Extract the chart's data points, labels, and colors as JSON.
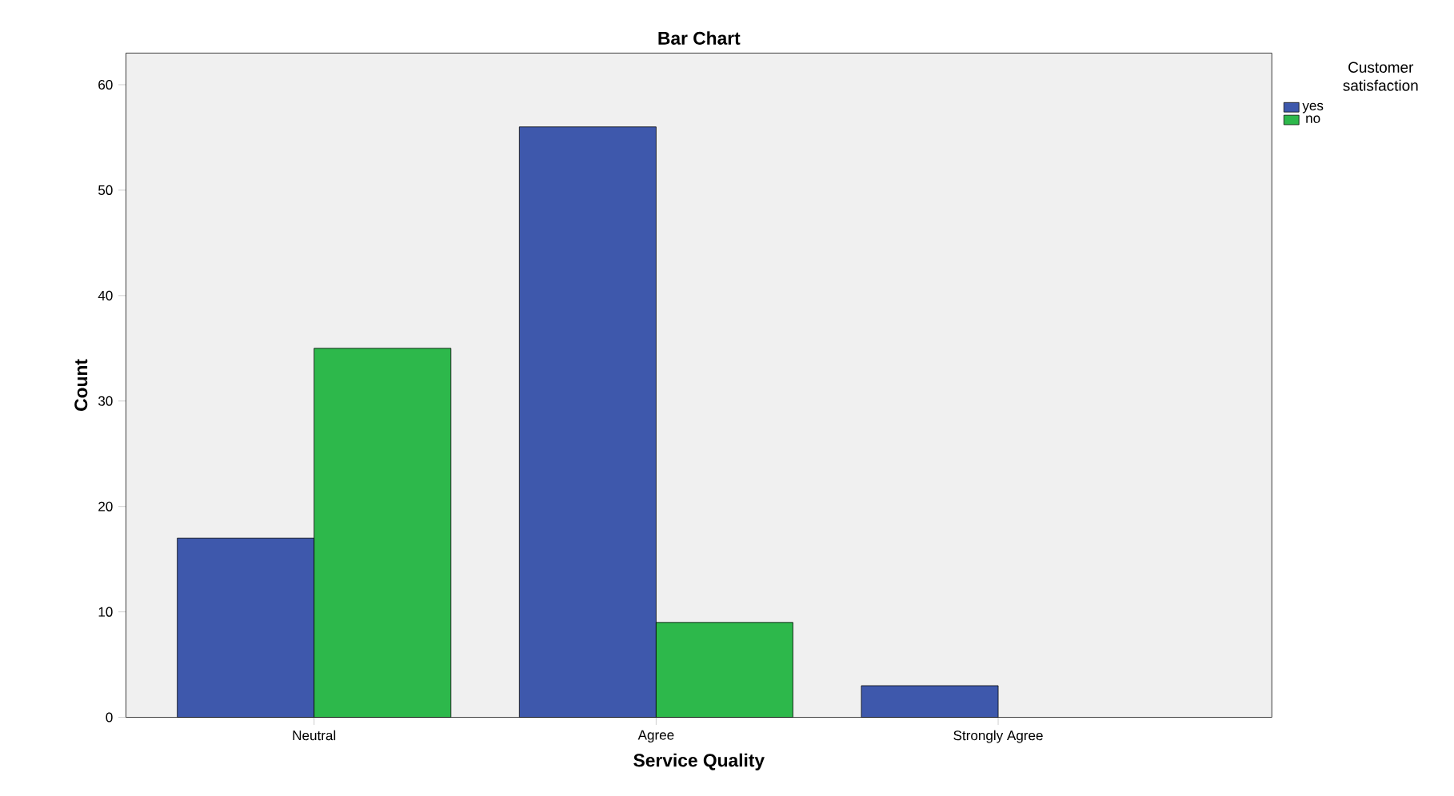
{
  "chart_data": {
    "type": "bar",
    "title": "Bar Chart",
    "xlabel": "Service Quality",
    "ylabel": "Count",
    "legend_title": "Customer satisfaction",
    "categories": [
      "Neutral",
      "Agree",
      "Strongly Agree"
    ],
    "series": [
      {
        "name": "yes",
        "color": "#3e58ac",
        "values": [
          17,
          56,
          3
        ]
      },
      {
        "name": "no",
        "color": "#2db84b",
        "values": [
          35,
          9,
          null
        ]
      }
    ],
    "ylim": [
      0,
      63
    ],
    "yticks": [
      0,
      10,
      20,
      30,
      40,
      50,
      60
    ],
    "grid": false,
    "legend": "top right"
  }
}
